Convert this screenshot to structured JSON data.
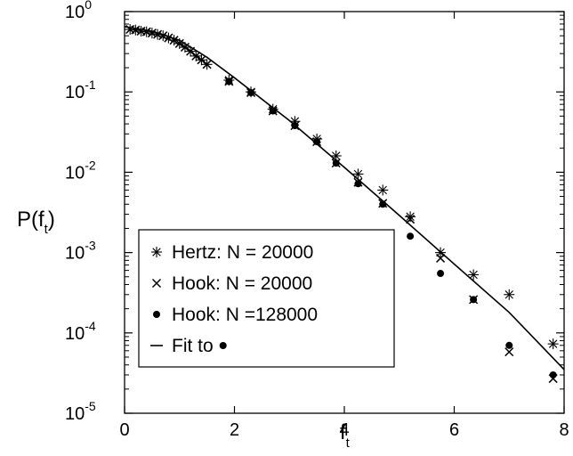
{
  "chart_data": {
    "type": "scatter",
    "xlabel": {
      "base": "f",
      "sub": "t"
    },
    "ylabel": {
      "pre": "P(f",
      "sub": "t",
      "post": ")"
    },
    "xlim": [
      0,
      8
    ],
    "ylim": [
      1e-05,
      1
    ],
    "yscale": "log",
    "xticks": [
      0,
      2,
      4,
      6,
      8
    ],
    "yticks": [
      {
        "value": 1,
        "base": "10",
        "exp": "0"
      },
      {
        "value": 0.1,
        "base": "10",
        "exp": "-1"
      },
      {
        "value": 0.01,
        "base": "10",
        "exp": "-2"
      },
      {
        "value": 0.001,
        "base": "10",
        "exp": "-3"
      },
      {
        "value": 0.0001,
        "base": "10",
        "exp": "-4"
      },
      {
        "value": 1e-05,
        "base": "10",
        "exp": "-5"
      }
    ],
    "grid": false,
    "legend_position": "bottom-left",
    "series": [
      {
        "name": "Hertz: N = 20000",
        "marker": "asterisk",
        "points": [
          [
            0.1,
            0.6
          ],
          [
            0.2,
            0.59
          ],
          [
            0.3,
            0.57
          ],
          [
            0.4,
            0.56
          ],
          [
            0.5,
            0.54
          ],
          [
            0.6,
            0.52
          ],
          [
            0.7,
            0.5
          ],
          [
            0.8,
            0.47
          ],
          [
            0.9,
            0.44
          ],
          [
            1.0,
            0.4
          ],
          [
            1.1,
            0.36
          ],
          [
            1.2,
            0.32
          ],
          [
            1.3,
            0.28
          ],
          [
            1.4,
            0.25
          ],
          [
            1.5,
            0.22
          ],
          [
            1.9,
            0.14
          ],
          [
            2.3,
            0.1
          ],
          [
            2.7,
            0.061
          ],
          [
            3.1,
            0.043
          ],
          [
            3.5,
            0.026
          ],
          [
            3.85,
            0.016
          ],
          [
            4.25,
            0.0095
          ],
          [
            4.7,
            0.006
          ],
          [
            5.2,
            0.0028
          ],
          [
            5.75,
            0.001
          ],
          [
            6.35,
            0.00053
          ],
          [
            7.0,
            0.0003
          ],
          [
            7.8,
            7.3e-05
          ]
        ]
      },
      {
        "name": "Hook: N = 20000",
        "marker": "x",
        "points": [
          [
            0.1,
            0.6
          ],
          [
            0.2,
            0.59
          ],
          [
            0.3,
            0.57
          ],
          [
            0.4,
            0.56
          ],
          [
            0.5,
            0.54
          ],
          [
            0.6,
            0.52
          ],
          [
            0.7,
            0.5
          ],
          [
            0.8,
            0.47
          ],
          [
            0.9,
            0.44
          ],
          [
            1.0,
            0.4
          ],
          [
            1.1,
            0.36
          ],
          [
            1.2,
            0.32
          ],
          [
            1.3,
            0.28
          ],
          [
            1.4,
            0.25
          ],
          [
            1.5,
            0.22
          ],
          [
            1.9,
            0.135
          ],
          [
            2.3,
            0.098
          ],
          [
            2.7,
            0.058
          ],
          [
            3.1,
            0.038
          ],
          [
            3.5,
            0.024
          ],
          [
            3.85,
            0.013
          ],
          [
            4.25,
            0.0075
          ],
          [
            4.7,
            0.0041
          ],
          [
            5.2,
            0.0026
          ],
          [
            5.75,
            0.00085
          ],
          [
            6.35,
            0.00026
          ],
          [
            7.0,
            5.8e-05
          ],
          [
            7.8,
            2.7e-05
          ]
        ]
      },
      {
        "name": "Hook: N =128000",
        "marker": "dot",
        "points": [
          [
            1.9,
            0.135
          ],
          [
            2.3,
            0.098
          ],
          [
            2.7,
            0.058
          ],
          [
            3.1,
            0.038
          ],
          [
            3.5,
            0.024
          ],
          [
            3.85,
            0.013
          ],
          [
            4.25,
            0.0072
          ],
          [
            4.7,
            0.004
          ],
          [
            5.2,
            0.0016
          ],
          [
            5.75,
            0.00055
          ],
          [
            6.35,
            0.00026
          ],
          [
            7.0,
            7e-05
          ],
          [
            7.8,
            3e-05
          ]
        ]
      }
    ],
    "fit": {
      "name": "Fit to",
      "marker_ref": "dot",
      "points": [
        [
          0,
          0.65
        ],
        [
          0.5,
          0.57
        ],
        [
          1.0,
          0.44
        ],
        [
          1.5,
          0.27
        ],
        [
          2.0,
          0.15
        ],
        [
          3.0,
          0.044
        ],
        [
          4.0,
          0.0115
        ],
        [
          5.0,
          0.0029
        ],
        [
          6.0,
          0.00072
        ],
        [
          7.0,
          0.00018
        ],
        [
          8.0,
          3.5e-05
        ]
      ]
    }
  }
}
